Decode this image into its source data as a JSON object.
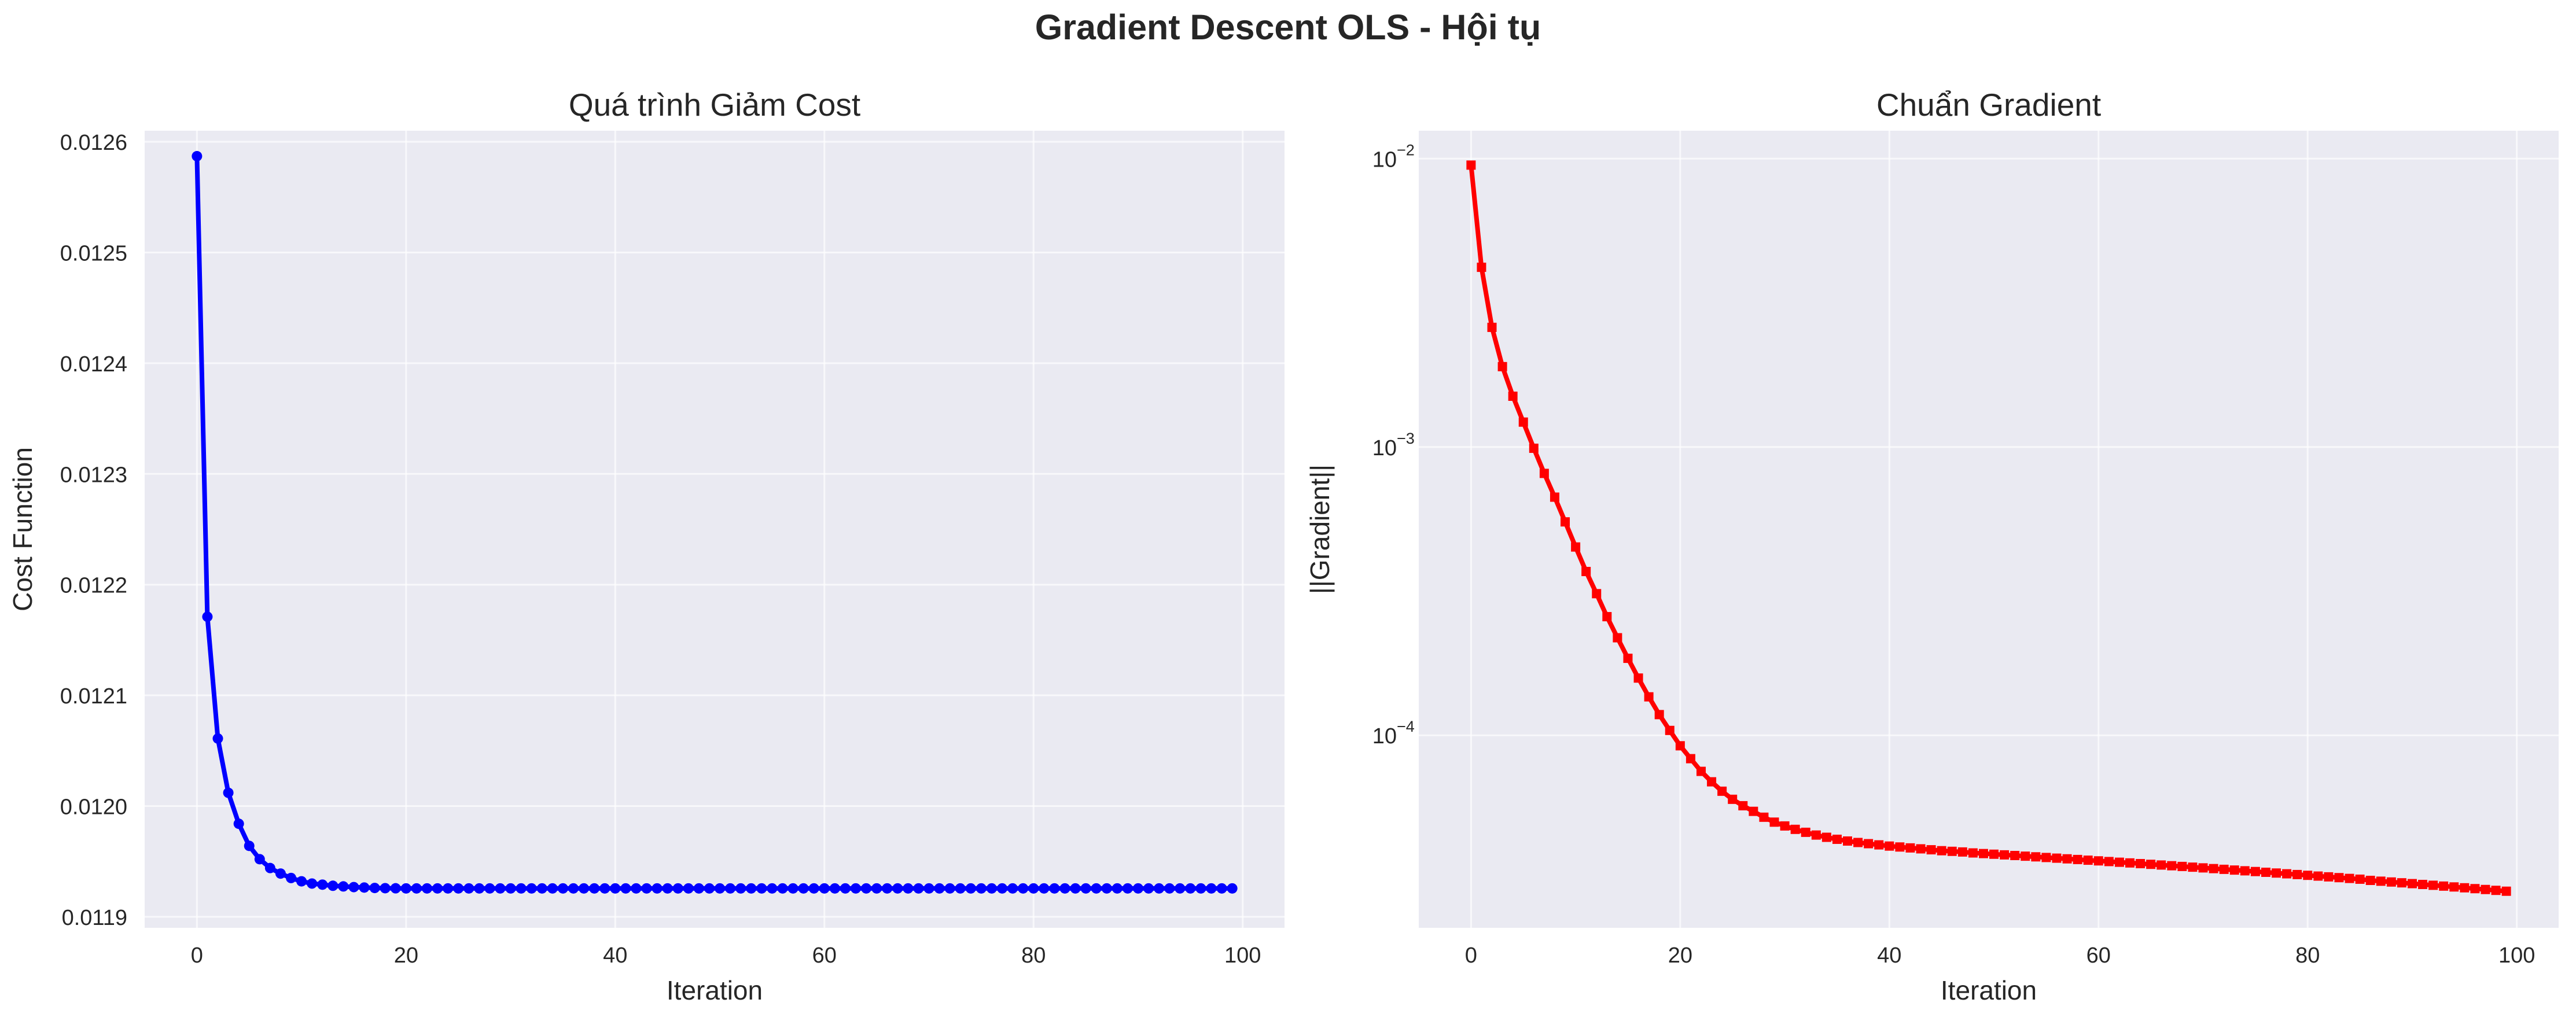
{
  "figure": {
    "suptitle": "Gradient Descent OLS - Hội tụ"
  },
  "chart_data": [
    {
      "type": "line",
      "title": "Quá trình Giảm Cost",
      "xlabel": "Iteration",
      "ylabel": "Cost Function",
      "xlim": [
        -5,
        104
      ],
      "ylim": [
        0.01189,
        0.01261
      ],
      "x_ticks": [
        0,
        20,
        40,
        60,
        80,
        100
      ],
      "y_ticks": [
        0.0119,
        0.012,
        0.0121,
        0.0122,
        0.0123,
        0.0124,
        0.0125,
        0.0126
      ],
      "y_tick_labels": [
        "0.0119",
        "0.0120",
        "0.0121",
        "0.0122",
        "0.0123",
        "0.0124",
        "0.0125",
        "0.0126"
      ],
      "grid": true,
      "y_scale": "linear",
      "series": [
        {
          "color": "#0000ff",
          "marker": "circle",
          "x": [
            0,
            1,
            2,
            3,
            4,
            5,
            6,
            7,
            8,
            9,
            10,
            11,
            12,
            13,
            14,
            15,
            16,
            17,
            18,
            19,
            20,
            21,
            22,
            23,
            24,
            25,
            26,
            27,
            28,
            29,
            30,
            31,
            32,
            33,
            34,
            35,
            36,
            37,
            38,
            39,
            40,
            41,
            42,
            43,
            44,
            45,
            46,
            47,
            48,
            49,
            50,
            51,
            52,
            53,
            54,
            55,
            56,
            57,
            58,
            59,
            60,
            61,
            62,
            63,
            64,
            65,
            66,
            67,
            68,
            69,
            70,
            71,
            72,
            73,
            74,
            75,
            76,
            77,
            78,
            79,
            80,
            81,
            82,
            83,
            84,
            85,
            86,
            87,
            88,
            89,
            90,
            91,
            92,
            93,
            94,
            95,
            96,
            97,
            98,
            99
          ],
          "y": [
            0.012587,
            0.012171,
            0.012061,
            0.012012,
            0.011984,
            0.011964,
            0.011952,
            0.011944,
            0.011939,
            0.011935,
            0.011932,
            0.01193,
            0.011929,
            0.011928,
            0.0119274,
            0.0119268,
            0.0119264,
            0.011926,
            0.0119258,
            0.0119257,
            0.0119256,
            0.0119256,
            0.0119256,
            0.0119256,
            0.0119256,
            0.0119256,
            0.0119256,
            0.0119256,
            0.0119256,
            0.0119256,
            0.0119256,
            0.0119256,
            0.0119256,
            0.0119256,
            0.0119256,
            0.0119256,
            0.0119256,
            0.0119256,
            0.0119256,
            0.0119256,
            0.0119256,
            0.0119256,
            0.0119256,
            0.0119256,
            0.0119256,
            0.0119256,
            0.0119256,
            0.0119256,
            0.0119256,
            0.0119256,
            0.0119256,
            0.0119256,
            0.0119256,
            0.0119256,
            0.0119256,
            0.0119256,
            0.0119256,
            0.0119256,
            0.0119256,
            0.0119256,
            0.0119256,
            0.0119256,
            0.0119256,
            0.0119256,
            0.0119256,
            0.0119256,
            0.0119256,
            0.0119256,
            0.0119256,
            0.0119256,
            0.0119256,
            0.0119256,
            0.0119256,
            0.0119256,
            0.0119256,
            0.0119256,
            0.0119256,
            0.0119256,
            0.0119256,
            0.0119256,
            0.0119256,
            0.0119256,
            0.0119256,
            0.0119256,
            0.0119256,
            0.0119256,
            0.0119256,
            0.0119256,
            0.0119256,
            0.0119256,
            0.0119256,
            0.0119256,
            0.0119256,
            0.0119256,
            0.0119256,
            0.0119256,
            0.0119256,
            0.0119256,
            0.0119256,
            0.0119256
          ]
        }
      ]
    },
    {
      "type": "line",
      "title": "Chuẩn Gradient",
      "xlabel": "Iteration",
      "ylabel": "||Gradient||",
      "xlim": [
        -5,
        104
      ],
      "ylim": [
        2.15e-05,
        0.0125
      ],
      "x_ticks": [
        0,
        20,
        40,
        60,
        80,
        100
      ],
      "y_ticks": [
        0.0001,
        0.001,
        0.01
      ],
      "y_tick_labels": [
        "10",
        "10",
        "10"
      ],
      "y_tick_exponents": [
        "−4",
        "−3",
        "−2"
      ],
      "grid": true,
      "y_scale": "log",
      "series": [
        {
          "color": "#ff0000",
          "marker": "square",
          "x": [
            0,
            1,
            2,
            3,
            4,
            5,
            6,
            7,
            8,
            9,
            10,
            11,
            12,
            13,
            14,
            15,
            16,
            17,
            18,
            19,
            20,
            21,
            22,
            23,
            24,
            25,
            26,
            27,
            28,
            29,
            30,
            31,
            32,
            33,
            34,
            35,
            36,
            37,
            38,
            39,
            40,
            41,
            42,
            43,
            44,
            45,
            46,
            47,
            48,
            49,
            50,
            51,
            52,
            53,
            54,
            55,
            56,
            57,
            58,
            59,
            60,
            61,
            62,
            63,
            64,
            65,
            66,
            67,
            68,
            69,
            70,
            71,
            72,
            73,
            74,
            75,
            76,
            77,
            78,
            79,
            80,
            81,
            82,
            83,
            84,
            85,
            86,
            87,
            88,
            89,
            90,
            91,
            92,
            93,
            94,
            95,
            96,
            97,
            98,
            99
          ],
          "y": [
            0.0095,
            0.0042,
            0.0026,
            0.0019,
            0.0015,
            0.00122,
            0.00099,
            0.00081,
            0.00067,
            0.00055,
            0.00045,
            0.00037,
            0.00031,
            0.000258,
            0.000218,
            0.000185,
            0.000158,
            0.000136,
            0.000118,
            0.000104,
            9.2e-05,
            8.3e-05,
            7.5e-05,
            6.9e-05,
            6.4e-05,
            6e-05,
            5.7e-05,
            5.45e-05,
            5.2e-05,
            5e-05,
            4.85e-05,
            4.72e-05,
            4.61e-05,
            4.51e-05,
            4.43e-05,
            4.36e-05,
            4.3e-05,
            4.25e-05,
            4.21e-05,
            4.17e-05,
            4.13e-05,
            4.1e-05,
            4.07e-05,
            4.04e-05,
            4.01e-05,
            3.98e-05,
            3.96e-05,
            3.94e-05,
            3.91e-05,
            3.89e-05,
            3.87e-05,
            3.85e-05,
            3.83e-05,
            3.81e-05,
            3.79e-05,
            3.77e-05,
            3.75e-05,
            3.73e-05,
            3.71e-05,
            3.69e-05,
            3.67e-05,
            3.65e-05,
            3.63e-05,
            3.61e-05,
            3.59e-05,
            3.57e-05,
            3.55e-05,
            3.53e-05,
            3.51e-05,
            3.49e-05,
            3.47e-05,
            3.45e-05,
            3.43e-05,
            3.41e-05,
            3.39e-05,
            3.37e-05,
            3.35e-05,
            3.33e-05,
            3.31e-05,
            3.29e-05,
            3.27e-05,
            3.25e-05,
            3.23e-05,
            3.21e-05,
            3.19e-05,
            3.17e-05,
            3.14e-05,
            3.12e-05,
            3.1e-05,
            3.08e-05,
            3.06e-05,
            3.04e-05,
            3.02e-05,
            3e-05,
            2.98e-05,
            2.96e-05,
            2.94e-05,
            2.92e-05,
            2.9e-05,
            2.88e-05
          ]
        }
      ]
    }
  ]
}
